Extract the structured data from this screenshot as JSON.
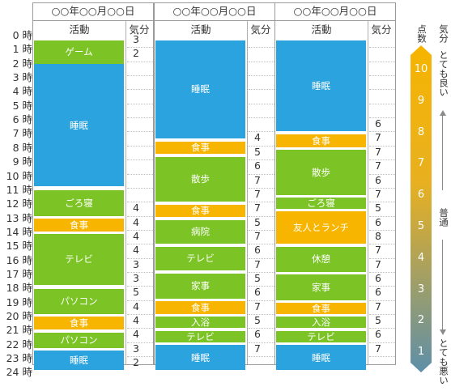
{
  "hours": [
    "0 時",
    "1 時",
    "2 時",
    "3 時",
    "4 時",
    "5 時",
    "6 時",
    "7 時",
    "8 時",
    "9 時",
    "10 時",
    "11 時",
    "12 時",
    "13 時",
    "14 時",
    "15 時",
    "16 時",
    "17 時",
    "18 時",
    "19 時",
    "20 時",
    "21 時",
    "22 時",
    "23 時",
    "24 時"
  ],
  "colors": {
    "sleep": "#2ba3df",
    "activity": "#7cc425",
    "meal": "#f8b500",
    "border": "#9a9a9a"
  },
  "days": [
    {
      "date": "○○年○○月○○日",
      "activity_header": "活動",
      "mood_header": "気分",
      "activities": [
        {
          "label": "ゲーム",
          "start": 0.5,
          "end": 2.2,
          "type": "activity"
        },
        {
          "label": "睡眠",
          "start": 2.2,
          "end": 10.9,
          "type": "sleep"
        },
        {
          "label": "ごろ寝",
          "start": 11.2,
          "end": 13.0,
          "type": "activity"
        },
        {
          "label": "食事",
          "start": 13.2,
          "end": 14.1,
          "type": "meal"
        },
        {
          "label": "テレビ",
          "start": 14.3,
          "end": 17.9,
          "type": "activity"
        },
        {
          "label": "パソコン",
          "start": 18.2,
          "end": 20.0,
          "type": "activity"
        },
        {
          "label": "食事",
          "start": 20.2,
          "end": 21.1,
          "type": "meal"
        },
        {
          "label": "パソコン",
          "start": 21.3,
          "end": 22.4,
          "type": "activity"
        },
        {
          "label": "睡眠",
          "start": 22.6,
          "end": 24.0,
          "type": "sleep"
        }
      ],
      "moods": [
        {
          "hour": 0,
          "value": "3"
        },
        {
          "hour": 1,
          "value": "2"
        },
        {
          "hour": 12,
          "value": "4"
        },
        {
          "hour": 13,
          "value": "4"
        },
        {
          "hour": 14,
          "value": "4"
        },
        {
          "hour": 15,
          "value": "4"
        },
        {
          "hour": 16,
          "value": "3"
        },
        {
          "hour": 17,
          "value": "3"
        },
        {
          "hour": 18,
          "value": "5"
        },
        {
          "hour": 19,
          "value": "4"
        },
        {
          "hour": 20,
          "value": "4"
        },
        {
          "hour": 21,
          "value": "4"
        },
        {
          "hour": 22,
          "value": "3"
        },
        {
          "hour": 23,
          "value": "2"
        }
      ]
    },
    {
      "date": "○○年○○月○○日",
      "activity_header": "活動",
      "mood_header": "気分",
      "activities": [
        {
          "label": "睡眠",
          "start": 0.5,
          "end": 7.5,
          "type": "sleep"
        },
        {
          "label": "食事",
          "start": 7.7,
          "end": 8.6,
          "type": "meal"
        },
        {
          "label": "散歩",
          "start": 8.8,
          "end": 12.0,
          "type": "activity"
        },
        {
          "label": "食事",
          "start": 12.2,
          "end": 13.1,
          "type": "meal"
        },
        {
          "label": "病院",
          "start": 13.3,
          "end": 15.0,
          "type": "activity"
        },
        {
          "label": "テレビ",
          "start": 15.2,
          "end": 16.9,
          "type": "activity"
        },
        {
          "label": "家事",
          "start": 17.1,
          "end": 18.9,
          "type": "activity"
        },
        {
          "label": "食事",
          "start": 19.1,
          "end": 20.0,
          "type": "meal"
        },
        {
          "label": "入浴",
          "start": 20.2,
          "end": 21.0,
          "type": "activity"
        },
        {
          "label": "テレビ",
          "start": 21.2,
          "end": 22.0,
          "type": "activity"
        },
        {
          "label": "睡眠",
          "start": 22.2,
          "end": 24.0,
          "type": "sleep"
        }
      ],
      "moods": [
        {
          "hour": 7,
          "value": "4"
        },
        {
          "hour": 8,
          "value": "5"
        },
        {
          "hour": 9,
          "value": "6"
        },
        {
          "hour": 10,
          "value": "7"
        },
        {
          "hour": 11,
          "value": "7"
        },
        {
          "hour": 12,
          "value": "7"
        },
        {
          "hour": 13,
          "value": "5"
        },
        {
          "hour": 14,
          "value": "7"
        },
        {
          "hour": 15,
          "value": "6"
        },
        {
          "hour": 16,
          "value": "7"
        },
        {
          "hour": 17,
          "value": "5"
        },
        {
          "hour": 18,
          "value": "6"
        },
        {
          "hour": 19,
          "value": "7"
        },
        {
          "hour": 20,
          "value": "5"
        },
        {
          "hour": 21,
          "value": "6"
        },
        {
          "hour": 22,
          "value": "7"
        }
      ]
    },
    {
      "date": "○○年○○月○○日",
      "activity_header": "活動",
      "mood_header": "気分",
      "activities": [
        {
          "label": "睡眠",
          "start": 0.5,
          "end": 7.0,
          "type": "sleep"
        },
        {
          "label": "食事",
          "start": 7.2,
          "end": 8.1,
          "type": "meal"
        },
        {
          "label": "散歩",
          "start": 8.3,
          "end": 11.5,
          "type": "activity"
        },
        {
          "label": "ごろ寝",
          "start": 11.7,
          "end": 12.5,
          "type": "activity"
        },
        {
          "label": "友人とランチ",
          "start": 12.7,
          "end": 15.0,
          "type": "meal"
        },
        {
          "label": "休憩",
          "start": 15.2,
          "end": 17.0,
          "type": "activity"
        },
        {
          "label": "家事",
          "start": 17.2,
          "end": 19.0,
          "type": "activity"
        },
        {
          "label": "食事",
          "start": 19.2,
          "end": 20.0,
          "type": "meal"
        },
        {
          "label": "入浴",
          "start": 20.2,
          "end": 21.0,
          "type": "activity"
        },
        {
          "label": "テレビ",
          "start": 21.2,
          "end": 22.0,
          "type": "activity"
        },
        {
          "label": "睡眠",
          "start": 22.2,
          "end": 24.0,
          "type": "sleep"
        }
      ],
      "moods": [
        {
          "hour": 6,
          "value": "6"
        },
        {
          "hour": 7,
          "value": "7"
        },
        {
          "hour": 8,
          "value": "7"
        },
        {
          "hour": 9,
          "value": "7"
        },
        {
          "hour": 10,
          "value": "6"
        },
        {
          "hour": 11,
          "value": "7"
        },
        {
          "hour": 12,
          "value": "5"
        },
        {
          "hour": 13,
          "value": "6"
        },
        {
          "hour": 14,
          "value": "8"
        },
        {
          "hour": 15,
          "value": "7"
        },
        {
          "hour": 16,
          "value": "7"
        },
        {
          "hour": 17,
          "value": "6"
        },
        {
          "hour": 18,
          "value": "6"
        },
        {
          "hour": 19,
          "value": "7"
        },
        {
          "hour": 20,
          "value": "5"
        },
        {
          "hour": 21,
          "value": "6"
        },
        {
          "hour": 22,
          "value": "7"
        }
      ]
    }
  ],
  "scale": {
    "title": "点数",
    "mood_label": "気分",
    "top_label": "とても良い",
    "middle_label": "普通",
    "bottom_label": "とても悪い",
    "numbers": [
      "10",
      "9",
      "8",
      "7",
      "6",
      "5",
      "4",
      "3",
      "2",
      "1"
    ],
    "gradient_top": "#f6b400",
    "gradient_bottom": "#5e8fa9"
  }
}
